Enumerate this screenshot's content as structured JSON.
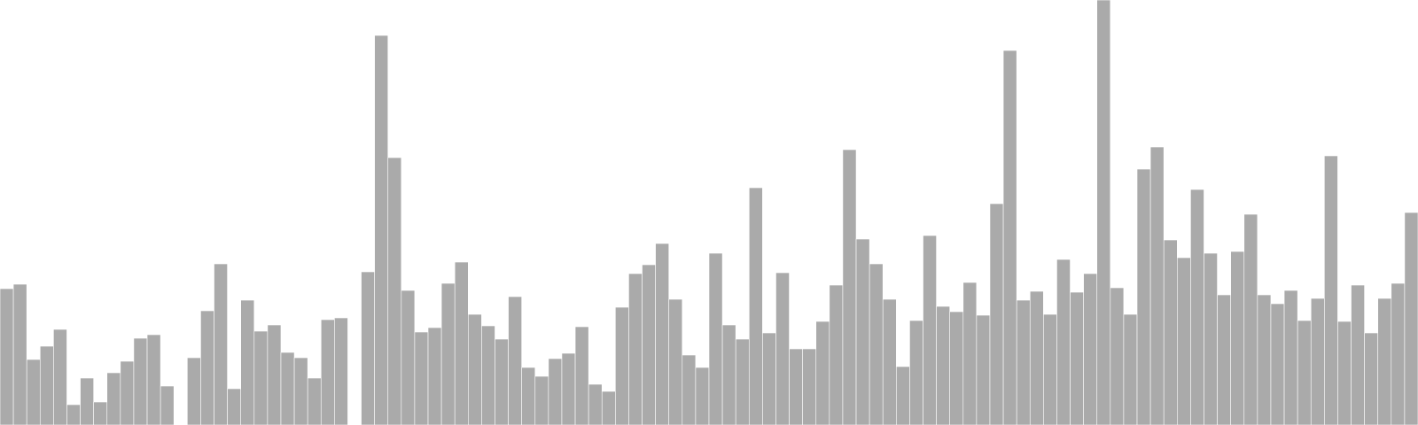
{
  "chart_data": {
    "type": "bar",
    "title": "",
    "xlabel": "",
    "ylabel": "",
    "grid": false,
    "legend": false,
    "ylim": [
      0,
      480
    ],
    "bar_color": "#aaaaaa",
    "bar_edge_color": "#ffffff",
    "background_color": "#ffffff",
    "values": [
      154,
      159,
      74,
      89,
      108,
      23,
      53,
      26,
      59,
      72,
      98,
      102,
      44,
      0,
      76,
      129,
      182,
      41,
      141,
      106,
      113,
      82,
      76,
      53,
      119,
      121,
      0,
      173,
      440,
      302,
      152,
      105,
      110,
      160,
      184,
      125,
      112,
      97,
      145,
      65,
      55,
      75,
      81,
      111,
      46,
      38,
      133,
      171,
      181,
      205,
      142,
      79,
      65,
      194,
      113,
      97,
      268,
      104,
      172,
      86,
      86,
      117,
      158,
      311,
      210,
      182,
      142,
      66,
      118,
      214,
      134,
      128,
      161,
      124,
      250,
      423,
      141,
      151,
      125,
      187,
      150,
      171,
      480,
      155,
      125,
      289,
      314,
      209,
      189,
      266,
      194,
      147,
      196,
      238,
      147,
      137,
      152,
      118,
      143,
      304,
      117,
      158,
      104,
      143,
      160,
      240
    ]
  }
}
